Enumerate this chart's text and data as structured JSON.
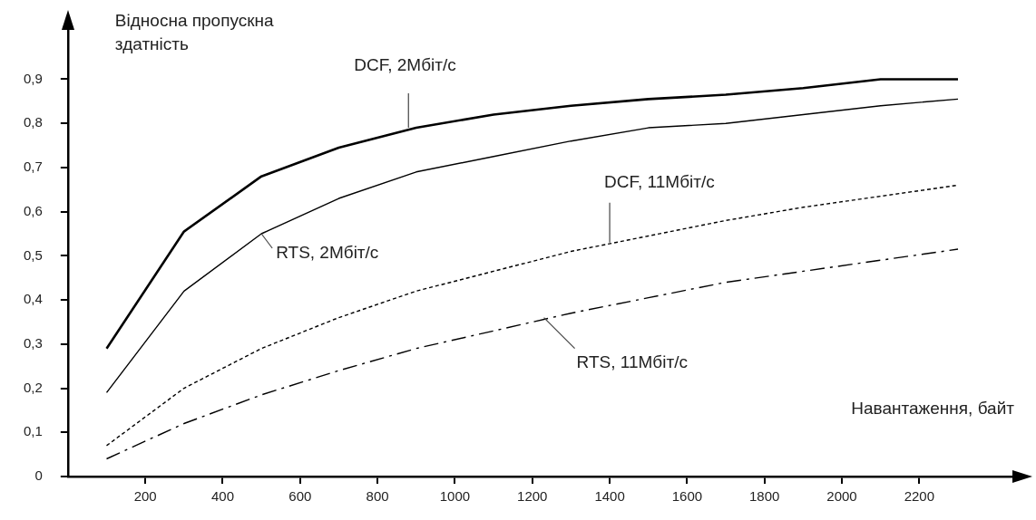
{
  "chart_data": {
    "type": "line",
    "xlabel": "Навантаження, байт",
    "ylabel": "Відносна пропускна здатність",
    "x": [
      100,
      300,
      500,
      700,
      900,
      1100,
      1300,
      1500,
      1700,
      1900,
      2100,
      2300
    ],
    "xlim": [
      0,
      2450
    ],
    "xticks": [
      200,
      400,
      600,
      800,
      1000,
      1200,
      1400,
      1600,
      1800,
      2000,
      2200
    ],
    "ylim": [
      0,
      1.02
    ],
    "yticks": [
      0,
      {
        "value": 0.1,
        "label": "0,1"
      },
      {
        "value": 0.2,
        "label": "0,2"
      },
      {
        "value": 0.3,
        "label": "0,3"
      },
      {
        "value": 0.4,
        "label": "0,4"
      },
      {
        "value": 0.5,
        "label": "0,5"
      },
      {
        "value": 0.6,
        "label": "0,6"
      },
      {
        "value": 0.7,
        "label": "0,7"
      },
      {
        "value": 0.8,
        "label": "0,8"
      },
      {
        "value": 0.9,
        "label": "0,9"
      }
    ],
    "series": [
      {
        "color": "#000000",
        "line_style": "solid",
        "values": [
          0.29,
          0.555,
          0.68,
          0.745,
          0.79,
          0.82,
          0.84,
          0.855,
          0.865,
          0.88,
          0.9,
          0.9
        ]
      },
      {
        "color": "#000000",
        "line_style": "solid",
        "values": [
          0.19,
          0.42,
          0.55,
          0.63,
          0.69,
          0.725,
          0.76,
          0.79,
          0.8,
          0.82,
          0.84,
          0.855
        ]
      },
      {
        "color": "#000000",
        "line_style": "dotted",
        "values": [
          0.07,
          0.2,
          0.29,
          0.36,
          0.42,
          0.465,
          0.51,
          0.545,
          0.58,
          0.61,
          0.635,
          0.66
        ]
      },
      {
        "color": "#000000",
        "line_style": "dashed",
        "values": [
          0.04,
          0.12,
          0.185,
          0.24,
          0.29,
          0.33,
          0.37,
          0.405,
          0.44,
          0.465,
          0.49,
          0.515
        ]
      }
    ],
    "annotations": [
      {
        "text": "DCF, 2Мбіт/с",
        "x": 880,
        "y": 0.79
      },
      {
        "text": "RTS, 2Мбіт/с",
        "x": 500,
        "y": 0.55
      },
      {
        "text": "DCF, 11Мбіт/с",
        "x": 1400,
        "y": 0.53
      },
      {
        "text": "RTS, 11Мбіт/с",
        "x": 1230,
        "y": 0.36
      }
    ],
    "grid": false,
    "legend": false,
    "marker": "none"
  }
}
